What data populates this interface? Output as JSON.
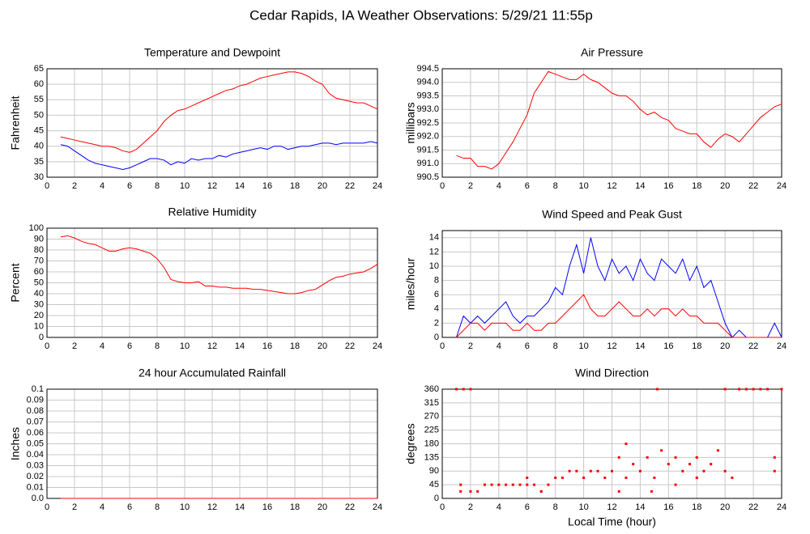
{
  "title": "Cedar Rapids, IA Weather Observations: 5/29/21 11:55p",
  "chart_data": [
    {
      "type": "line",
      "title": "Temperature and Dewpoint",
      "ylabel": "Fahrenheit",
      "x": [
        1,
        1.5,
        2,
        2.5,
        3,
        3.5,
        4,
        4.5,
        5,
        5.5,
        6,
        6.5,
        7,
        7.5,
        8,
        8.5,
        9,
        9.5,
        10,
        10.5,
        11,
        11.5,
        12,
        12.5,
        13,
        13.5,
        14,
        14.5,
        15,
        15.5,
        16,
        16.5,
        17,
        17.5,
        18,
        18.5,
        19,
        19.5,
        20,
        20.5,
        21,
        21.5,
        22,
        22.5,
        23,
        23.5,
        24
      ],
      "series": [
        {
          "color": "#ff0000",
          "values": [
            43,
            42.5,
            42,
            41.5,
            41,
            40.5,
            40,
            40,
            39.5,
            38.5,
            38,
            39,
            41,
            43,
            45,
            48,
            50,
            51.5,
            52,
            53,
            54,
            55,
            56,
            57,
            58,
            58.5,
            59.5,
            60,
            61,
            62,
            62.5,
            63,
            63.5,
            64,
            64,
            63.5,
            62.5,
            61,
            60,
            57,
            55.5,
            55,
            54.5,
            54,
            54,
            53,
            52
          ]
        },
        {
          "color": "#0000ff",
          "values": [
            40.5,
            40,
            38.5,
            37,
            35.5,
            34.5,
            34,
            33.5,
            33,
            32.5,
            33,
            34,
            35,
            36,
            36,
            35.5,
            34,
            35,
            34.5,
            36,
            35.5,
            36,
            36,
            37,
            36.5,
            37.5,
            38,
            38.5,
            39,
            39.5,
            39,
            40,
            40,
            39,
            39.5,
            40,
            40,
            40.5,
            41,
            41,
            40.5,
            41,
            41,
            41,
            41,
            41.5,
            41
          ]
        }
      ],
      "xlim": [
        0,
        24
      ],
      "xticks": [
        0,
        2,
        4,
        6,
        8,
        10,
        12,
        14,
        16,
        18,
        20,
        22,
        24
      ],
      "ylim": [
        30,
        65
      ],
      "yticks": [
        30,
        35,
        40,
        45,
        50,
        55,
        60,
        65
      ],
      "grid": true
    },
    {
      "type": "line",
      "title": "Air Pressure",
      "ylabel": "millibars",
      "x": [
        1,
        1.5,
        2,
        2.5,
        3,
        3.5,
        4,
        4.5,
        5,
        5.5,
        6,
        6.5,
        7,
        7.5,
        8,
        8.5,
        9,
        9.5,
        10,
        10.5,
        11,
        11.5,
        12,
        12.5,
        13,
        13.5,
        14,
        14.5,
        15,
        15.5,
        16,
        16.5,
        17,
        17.5,
        18,
        18.5,
        19,
        19.5,
        20,
        20.5,
        21,
        21.5,
        22,
        22.5,
        23,
        23.5,
        24
      ],
      "series": [
        {
          "color": "#ff0000",
          "values": [
            991.3,
            991.2,
            991.2,
            990.9,
            990.9,
            990.8,
            991.0,
            991.4,
            991.8,
            992.3,
            992.8,
            993.6,
            994.0,
            994.4,
            994.3,
            994.2,
            994.1,
            994.1,
            994.3,
            994.1,
            994.0,
            993.8,
            993.6,
            993.5,
            993.5,
            993.3,
            993.0,
            992.8,
            992.9,
            992.7,
            992.6,
            992.3,
            992.2,
            992.1,
            992.1,
            991.8,
            991.6,
            991.9,
            992.1,
            992.0,
            991.8,
            992.1,
            992.4,
            992.7,
            992.9,
            993.1,
            993.2
          ]
        }
      ],
      "xlim": [
        0,
        24
      ],
      "xticks": [
        0,
        2,
        4,
        6,
        8,
        10,
        12,
        14,
        16,
        18,
        20,
        22,
        24
      ],
      "ylim": [
        990.5,
        994.5
      ],
      "yticks": [
        990.5,
        {
          "value": 991,
          "label": "991.0"
        },
        991.5,
        {
          "value": 992,
          "label": "992.0"
        },
        992.5,
        {
          "value": 993,
          "label": "993.0"
        },
        993.5,
        {
          "value": 994,
          "label": "994.0"
        },
        994.5
      ],
      "grid": true
    },
    {
      "type": "line",
      "title": "Relative Humidity",
      "ylabel": "Percent",
      "x": [
        1,
        1.5,
        2,
        2.5,
        3,
        3.5,
        4,
        4.5,
        5,
        5.5,
        6,
        6.5,
        7,
        7.5,
        8,
        8.5,
        9,
        9.5,
        10,
        10.5,
        11,
        11.5,
        12,
        12.5,
        13,
        13.5,
        14,
        14.5,
        15,
        15.5,
        16,
        16.5,
        17,
        17.5,
        18,
        18.5,
        19,
        19.5,
        20,
        20.5,
        21,
        21.5,
        22,
        22.5,
        23,
        23.5,
        24
      ],
      "series": [
        {
          "color": "#ff0000",
          "values": [
            92,
            93,
            91,
            88,
            86,
            85,
            82,
            79,
            79,
            81,
            82,
            81,
            79,
            77,
            72,
            64,
            53,
            51,
            50,
            50,
            51,
            47,
            47,
            46,
            46,
            45,
            45,
            45,
            44,
            44,
            43,
            42,
            41,
            40,
            40,
            41,
            43,
            44,
            48,
            52,
            55,
            56,
            58,
            59,
            60,
            63,
            67
          ]
        }
      ],
      "xlim": [
        0,
        24
      ],
      "xticks": [
        0,
        2,
        4,
        6,
        8,
        10,
        12,
        14,
        16,
        18,
        20,
        22,
        24
      ],
      "ylim": [
        0,
        100
      ],
      "yticks": [
        0,
        10,
        20,
        30,
        40,
        50,
        60,
        70,
        80,
        90,
        100
      ],
      "grid": true
    },
    {
      "type": "line",
      "title": "Wind Speed and Peak Gust",
      "ylabel": "miles/hour",
      "x": [
        1,
        1.5,
        2,
        2.5,
        3,
        3.5,
        4,
        4.5,
        5,
        5.5,
        6,
        6.5,
        7,
        7.5,
        8,
        8.5,
        9,
        9.5,
        10,
        10.5,
        11,
        11.5,
        12,
        12.5,
        13,
        13.5,
        14,
        14.5,
        15,
        15.5,
        16,
        16.5,
        17,
        17.5,
        18,
        18.5,
        19,
        19.5,
        20,
        20.5,
        21,
        21.5,
        22,
        22.5,
        23,
        23.5,
        24
      ],
      "series": [
        {
          "color": "#0000ff",
          "values": [
            0,
            3,
            2,
            3,
            2,
            3,
            4,
            5,
            3,
            2,
            3,
            3,
            4,
            5,
            7,
            6,
            10,
            13,
            9,
            14,
            10,
            8,
            11,
            9,
            10,
            8,
            11,
            9,
            8,
            11,
            10,
            9,
            11,
            8,
            10,
            7,
            8,
            5,
            2,
            0,
            1,
            0,
            0,
            0,
            0,
            2,
            0
          ]
        },
        {
          "color": "#ff0000",
          "values": [
            0,
            1,
            2,
            2,
            1,
            2,
            2,
            2,
            1,
            1,
            2,
            1,
            1,
            2,
            2,
            3,
            4,
            5,
            6,
            4,
            3,
            3,
            4,
            5,
            4,
            3,
            3,
            4,
            3,
            4,
            4,
            3,
            4,
            3,
            3,
            2,
            2,
            2,
            1,
            0,
            0,
            0,
            0,
            0,
            0,
            0,
            0
          ]
        }
      ],
      "xlim": [
        0,
        24
      ],
      "xticks": [
        0,
        2,
        4,
        6,
        8,
        10,
        12,
        14,
        16,
        18,
        20,
        22,
        24
      ],
      "ylim": [
        0,
        15
      ],
      "yticks": [
        0,
        2,
        4,
        6,
        8,
        10,
        12,
        14
      ],
      "grid": true
    },
    {
      "type": "line",
      "title": "24 hour Accumulated Rainfall",
      "ylabel": "Inches",
      "x": [
        1,
        24
      ],
      "series": [
        {
          "color": "#ff0000",
          "values": [
            0,
            0
          ]
        }
      ],
      "xlim": [
        0,
        24
      ],
      "xticks": [
        0,
        2,
        4,
        6,
        8,
        10,
        12,
        14,
        16,
        18,
        20,
        22,
        24
      ],
      "ylim": [
        0,
        0.1
      ],
      "yticks": [
        {
          "value": 0,
          "label": "0.0"
        },
        0.01,
        0.02,
        0.03,
        0.04,
        0.05,
        0.06,
        0.07,
        0.08,
        0.09,
        0.1
      ],
      "grid": true
    },
    {
      "type": "scatter",
      "title": "Wind Direction",
      "ylabel": "degrees",
      "xlabel": "Local Time (hour)",
      "color": "#ff0000",
      "x": [
        1,
        1.5,
        2,
        1.3,
        1.3,
        2,
        2.5,
        3,
        3.5,
        4,
        4.5,
        5,
        5.5,
        6,
        6,
        6.5,
        7,
        7.5,
        8,
        8.5,
        9,
        9.5,
        10,
        10.5,
        11,
        11.5,
        12,
        12.5,
        13,
        13,
        13.5,
        14,
        14.5,
        15,
        15.5,
        16,
        16.5,
        17,
        17.5,
        18,
        18.5,
        19,
        19.5,
        20,
        20,
        20.5,
        21,
        21.5,
        22,
        22.5,
        23,
        23.5,
        23.5,
        24,
        15.2,
        12.5,
        14.8,
        16.5,
        18,
        7
      ],
      "values": [
        360,
        360,
        360,
        45,
        23,
        23,
        23,
        45,
        45,
        45,
        45,
        45,
        45,
        68,
        45,
        45,
        23,
        45,
        68,
        68,
        90,
        90,
        68,
        90,
        90,
        68,
        90,
        135,
        180,
        68,
        113,
        90,
        135,
        68,
        158,
        113,
        135,
        90,
        113,
        135,
        90,
        113,
        158,
        90,
        360,
        68,
        360,
        360,
        360,
        360,
        360,
        135,
        90,
        360,
        360,
        23,
        23,
        45,
        68,
        23
      ],
      "xlim": [
        0,
        24
      ],
      "xticks": [
        0,
        2,
        4,
        6,
        8,
        10,
        12,
        14,
        16,
        18,
        20,
        22,
        24
      ],
      "ylim": [
        0,
        360
      ],
      "yticks": [
        0,
        45,
        90,
        135,
        180,
        225,
        270,
        315,
        360
      ],
      "grid": true
    }
  ]
}
